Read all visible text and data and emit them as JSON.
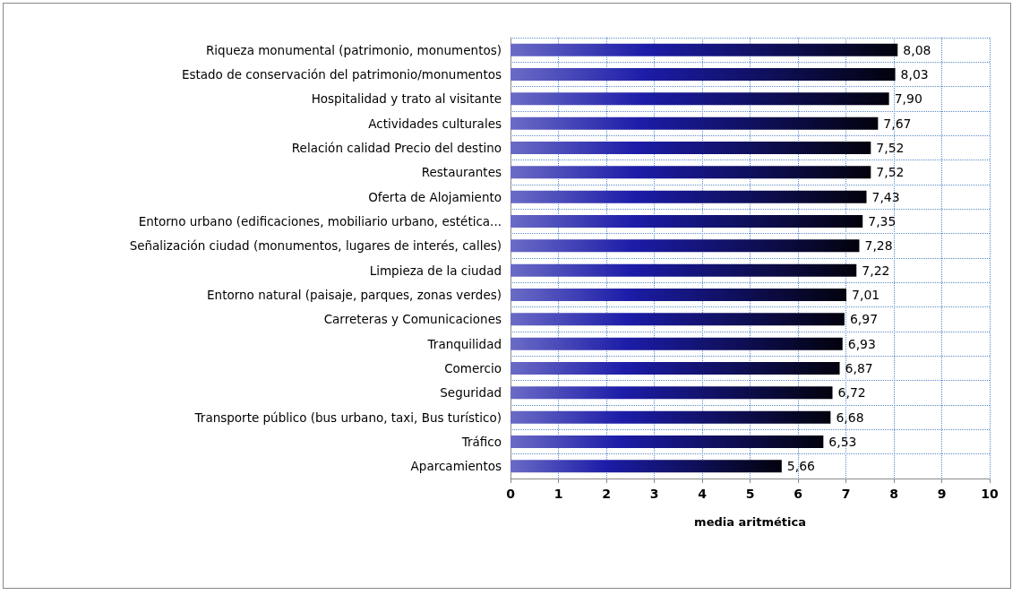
{
  "chart_data": {
    "type": "bar",
    "orientation": "horizontal",
    "xlabel": "media aritmética",
    "categories": [
      "Riqueza monumental (patrimonio, monumentos)",
      "Estado de conservación del patrimonio/monumentos",
      "Hospitalidad y trato al visitante",
      "Actividades culturales",
      "Relación calidad Precio del destino",
      "Restaurantes",
      "Oferta de Alojamiento",
      "Entorno urbano (edificaciones, mobiliario urbano, estética...",
      "Señalización ciudad (monumentos, lugares de interés, calles)",
      "Limpieza de la ciudad",
      "Entorno natural (paisaje, parques, zonas verdes)",
      "Carreteras y Comunicaciones",
      "Tranquilidad",
      "Comercio",
      "Seguridad",
      "Transporte público (bus urbano, taxi, Bus turístico)",
      "Tráfico",
      "Aparcamientos"
    ],
    "values": [
      8.08,
      8.03,
      7.9,
      7.67,
      7.52,
      7.52,
      7.43,
      7.35,
      7.28,
      7.22,
      7.01,
      6.97,
      6.93,
      6.87,
      6.72,
      6.68,
      6.53,
      5.66
    ],
    "value_labels": [
      "8,08",
      "8,03",
      "7,90",
      "7,67",
      "7,52",
      "7,52",
      "7,43",
      "7,35",
      "7,28",
      "7,22",
      "7,01",
      "6,97",
      "6,93",
      "6,87",
      "6,72",
      "6,68",
      "6,53",
      "5,66"
    ],
    "color": "#1c1ca8",
    "xlim": [
      0,
      10
    ],
    "xticks": [
      0,
      1,
      2,
      3,
      4,
      5,
      6,
      7,
      8,
      9,
      10
    ],
    "grid": true
  }
}
